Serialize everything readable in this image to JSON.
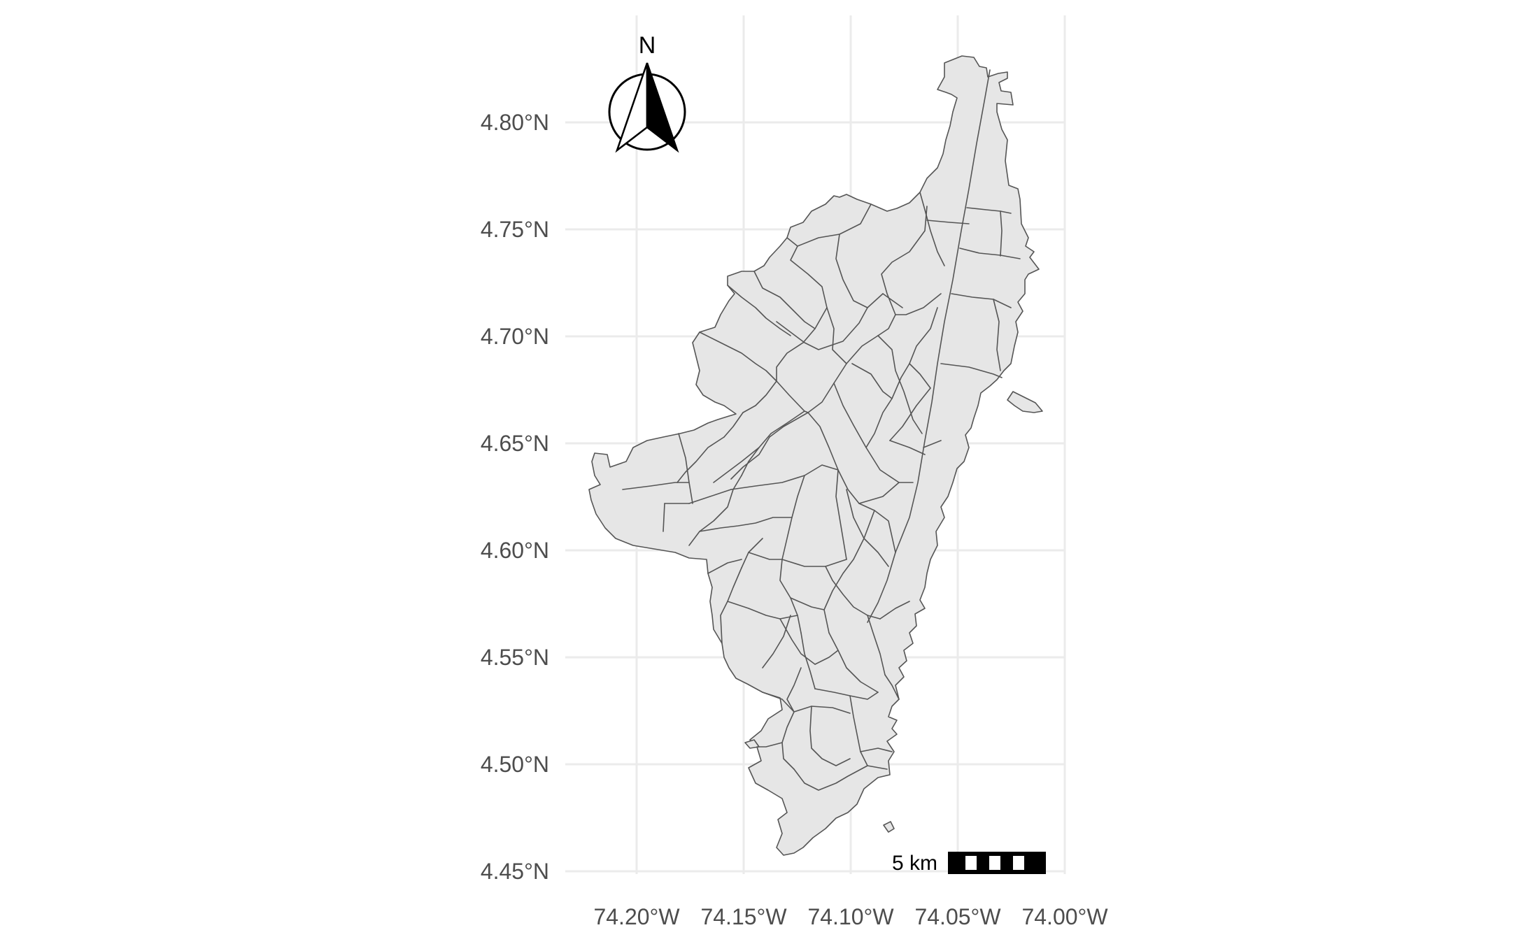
{
  "map": {
    "x_axis": {
      "ticks": [
        {
          "value": -74.2,
          "label": "74.20°W"
        },
        {
          "value": -74.15,
          "label": "74.15°W"
        },
        {
          "value": -74.1,
          "label": "74.10°W"
        },
        {
          "value": -74.05,
          "label": "74.05°W"
        },
        {
          "value": -74.0,
          "label": "74.00°W"
        }
      ]
    },
    "y_axis": {
      "ticks": [
        {
          "value": 4.8,
          "label": "4.80°N"
        },
        {
          "value": 4.75,
          "label": "4.75°N"
        },
        {
          "value": 4.7,
          "label": "4.70°N"
        },
        {
          "value": 4.65,
          "label": "4.65°N"
        },
        {
          "value": 4.6,
          "label": "4.60°N"
        },
        {
          "value": 4.55,
          "label": "4.55°N"
        },
        {
          "value": 4.5,
          "label": "4.50°N"
        },
        {
          "value": 4.45,
          "label": "4.45°N"
        }
      ]
    },
    "north_arrow": {
      "label": "N"
    },
    "scale_bar": {
      "label": "5 km"
    },
    "colors": {
      "fill": "#e6e6e6",
      "border": "#555555",
      "grid": "#ebebeb",
      "tick_text": "#4d4d4d"
    }
  }
}
